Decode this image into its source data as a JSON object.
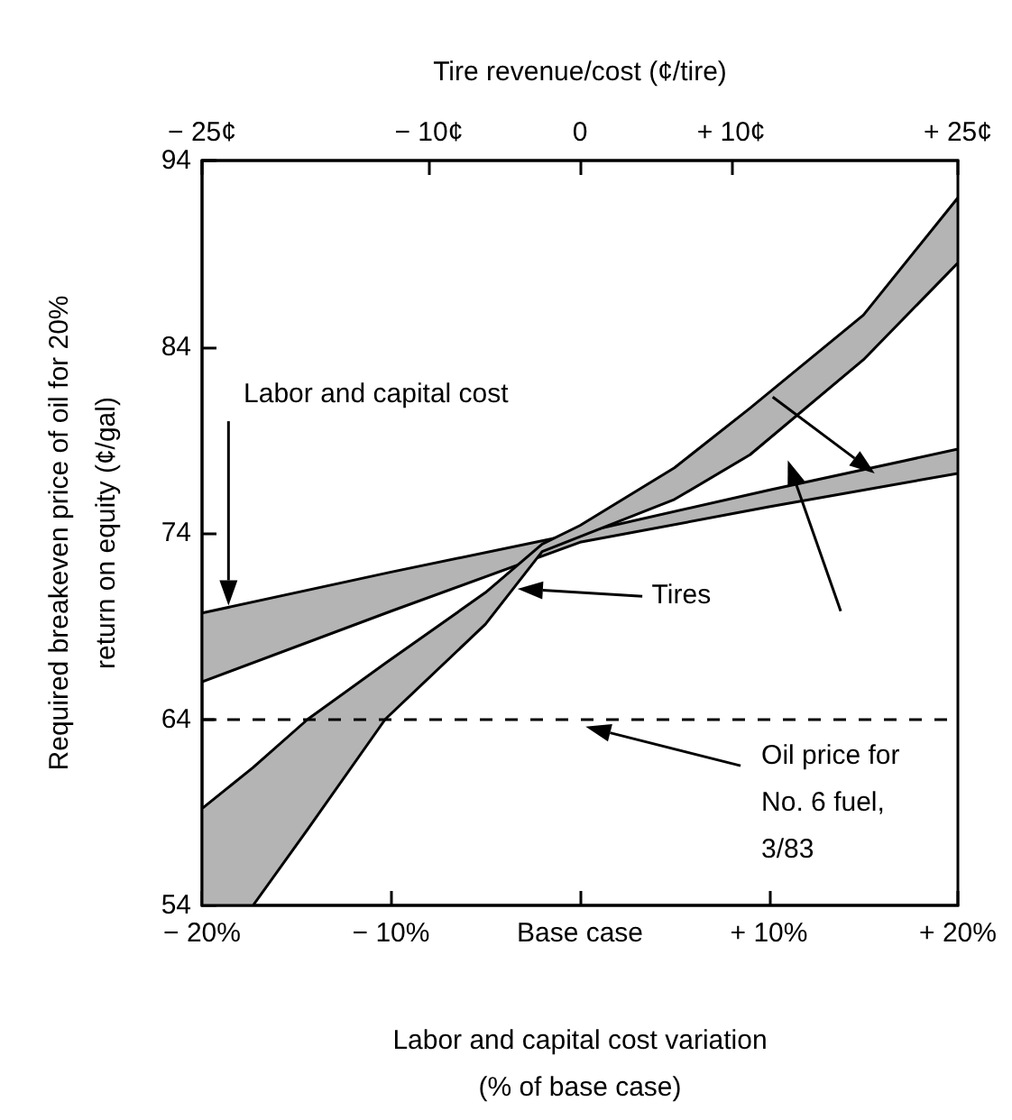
{
  "chart_data": {
    "type": "area",
    "xlabel": "Labor and capital cost variation\n(% of base case)",
    "x2label": "Tire revenue/cost (¢/tire)",
    "ylabel": "Required breakeven price of oil for 20%\nreturn on equity (¢/gal)",
    "xlim": [
      -20,
      20
    ],
    "xticks": [
      {
        "value": -20,
        "label": "− 20%"
      },
      {
        "value": -10,
        "label": "− 10%"
      },
      {
        "value": 0,
        "label": "Base case"
      },
      {
        "value": 10,
        "label": "+ 10%"
      },
      {
        "value": 20,
        "label": "+ 20%"
      }
    ],
    "x2lim": [
      -25,
      25
    ],
    "x2ticks": [
      {
        "value": -25,
        "label": "− 25¢"
      },
      {
        "value": -10,
        "label": "− 10¢"
      },
      0,
      {
        "value": 10,
        "label": "+ 10¢"
      },
      {
        "value": 25,
        "label": "+ 25¢"
      }
    ],
    "ylim": [
      54,
      94
    ],
    "yticks": [
      54,
      64,
      74,
      84,
      94
    ],
    "grid": false,
    "series": [
      {
        "name": "Labor and capital cost",
        "x": [
          -20,
          -10,
          0,
          10,
          20
        ],
        "values": [
          null,
          null,
          null,
          null,
          null
        ],
        "lower": [
          66.0,
          69.8,
          73.5,
          75.4,
          77.2
        ],
        "upper": [
          69.7,
          71.9,
          74.0,
          76.3,
          78.5
        ]
      },
      {
        "name": "Tires",
        "x": [
          -20,
          -17.3,
          -14.4,
          -10.3,
          -5,
          -2,
          0,
          5,
          9,
          15,
          20
        ],
        "values": [
          null,
          null,
          null,
          null,
          null,
          null,
          null,
          null,
          null,
          null,
          null
        ],
        "lower": [
          54,
          54,
          58.1,
          64,
          69.1,
          73.0,
          73.8,
          75.8,
          78.2,
          83.3,
          88.5
        ],
        "upper": [
          59.2,
          61.4,
          64,
          67.0,
          70.8,
          73.4,
          74.4,
          77.5,
          80.7,
          85.7,
          92
        ]
      }
    ],
    "ref_lines": [
      {
        "axis": "y",
        "value": 64,
        "label": "Oil price for No. 6 fuel, 3/83",
        "color": "#000000",
        "line_style": "dashed"
      }
    ]
  }
}
